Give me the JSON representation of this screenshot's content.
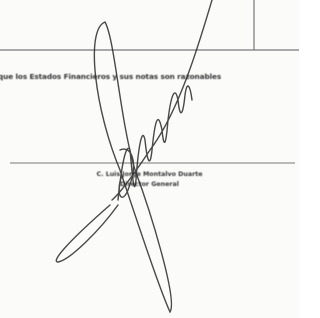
{
  "body": {
    "statement": "que los Estados Financieros y sus notas son razonables"
  },
  "signature_block": {
    "name": "C. Luis Jorge Montalvo Duarte",
    "position": "Director General"
  }
}
